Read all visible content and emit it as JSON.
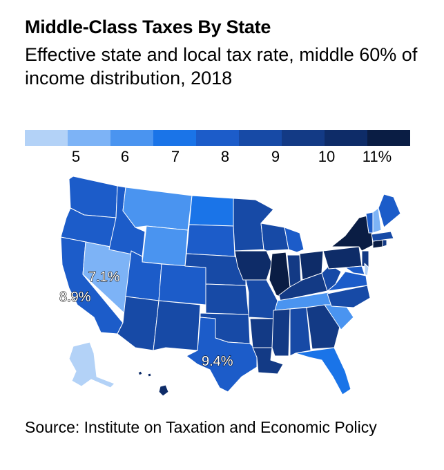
{
  "title": "Middle-Class Taxes By State",
  "subtitle": "Effective state and local tax rate, middle 60% of income distribution, 2018",
  "legend": {
    "colors": [
      "#b3d2f7",
      "#7db3f6",
      "#4a94f0",
      "#1a74e8",
      "#1c5cc9",
      "#174aa6",
      "#133a85",
      "#0e2c68",
      "#0a1d44"
    ],
    "ticks": [
      "5",
      "6",
      "7",
      "8",
      "9",
      "10",
      "11%"
    ]
  },
  "annotations": {
    "nevada": "7.1%",
    "california": "8.9%",
    "texas": "9.4%"
  },
  "source": "Source: Institute on Taxation and Economic Policy"
}
